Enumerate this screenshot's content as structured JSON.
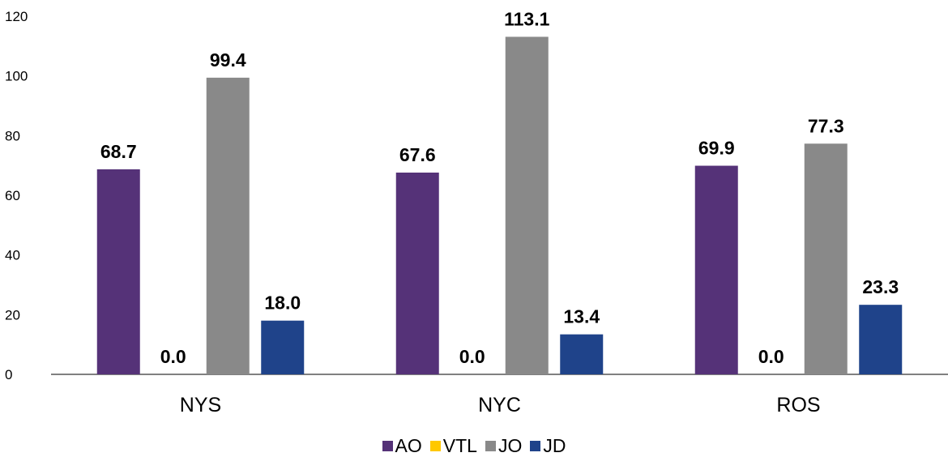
{
  "chart_data": {
    "type": "bar",
    "categories": [
      "NYS",
      "NYC",
      "ROS"
    ],
    "series": [
      {
        "name": "AO",
        "color": "#553278",
        "values": [
          68.7,
          67.6,
          69.9
        ]
      },
      {
        "name": "VTL",
        "color": "#FFC800",
        "values": [
          0.0,
          0.0,
          0.0
        ]
      },
      {
        "name": "JO",
        "color": "#898989",
        "values": [
          99.4,
          113.1,
          77.3
        ]
      },
      {
        "name": "JD",
        "color": "#1F438A",
        "values": [
          18.0,
          13.4,
          23.3
        ]
      }
    ],
    "ylim": [
      0,
      120
    ],
    "yticks": [
      0,
      20,
      40,
      60,
      80,
      100,
      120
    ],
    "title": "",
    "xlabel": "",
    "ylabel": "",
    "grid": false,
    "legend_position": "bottom"
  }
}
